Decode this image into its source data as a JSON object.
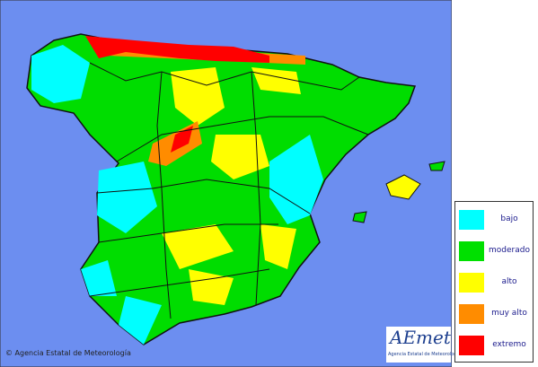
{
  "legend": {
    "items": [
      {
        "label": "bajo",
        "color": "#00ffff"
      },
      {
        "label": "moderado",
        "color": "#00e000"
      },
      {
        "label": "alto",
        "color": "#ffff00"
      },
      {
        "label": "muy alto",
        "color": "#ff8c00"
      },
      {
        "label": "extremo",
        "color": "#ff0000"
      }
    ]
  },
  "copyright": "© Agencia Estatal de Meteorología",
  "logo": {
    "name": "AEmet",
    "subtitle": "Agencia Estatal de Meteorología"
  }
}
